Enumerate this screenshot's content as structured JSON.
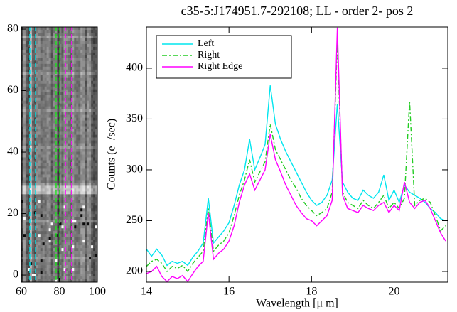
{
  "chart_data": [
    {
      "type": "image",
      "xlim": [
        60,
        100
      ],
      "ylim": [
        -2.3,
        80.7
      ],
      "xticks": [
        60,
        80,
        100
      ],
      "yticks": [
        0,
        20,
        40,
        60,
        80
      ],
      "vlines": [
        {
          "color": "#00e5ee",
          "x": [
            64.5,
            67.5
          ]
        },
        {
          "color": "#22dd22",
          "x": [
            78.3,
            80.2
          ]
        },
        {
          "color": "#ff00ff",
          "x": [
            83.2,
            86.5
          ]
        }
      ]
    },
    {
      "type": "line",
      "title": "c35-5:J174951.7-292108; LL - order 2- pos 2",
      "xlabel": "Wavelength [μ m]",
      "ylabel": "Counts (e⁻/sec)",
      "xlim": [
        14,
        21.3
      ],
      "ylim": [
        189.5,
        440.5
      ],
      "xticks": [
        14,
        16,
        18,
        20
      ],
      "yticks": [
        200,
        250,
        300,
        350,
        400
      ],
      "legend": "upper left",
      "x": [
        14,
        14.125,
        14.25,
        14.375,
        14.5,
        14.625,
        14.75,
        14.875,
        15,
        15.125,
        15.25,
        15.375,
        15.5,
        15.625,
        15.75,
        15.875,
        16,
        16.125,
        16.25,
        16.375,
        16.5,
        16.625,
        16.75,
        16.875,
        17,
        17.125,
        17.25,
        17.375,
        17.5,
        17.625,
        17.75,
        17.875,
        18,
        18.125,
        18.25,
        18.375,
        18.5,
        18.625,
        18.75,
        18.875,
        19,
        19.125,
        19.25,
        19.375,
        19.5,
        19.625,
        19.75,
        19.875,
        20,
        20.125,
        20.25,
        20.375,
        20.5,
        20.625,
        20.75,
        20.875,
        21,
        21.125,
        21.25
      ],
      "series": [
        {
          "name": "Left",
          "color": "#00e5ee",
          "dash": "solid",
          "values": [
            222,
            215,
            222,
            216,
            206,
            210,
            208,
            210,
            206,
            214,
            220,
            228,
            272,
            228,
            234,
            240,
            248,
            265,
            285,
            300,
            330,
            300,
            312,
            325,
            383,
            345,
            330,
            318,
            308,
            298,
            288,
            278,
            270,
            265,
            268,
            275,
            290,
            365,
            288,
            278,
            272,
            270,
            280,
            275,
            272,
            278,
            295,
            270,
            280,
            268,
            285,
            278,
            275,
            272,
            268,
            262,
            258,
            252,
            250
          ]
        },
        {
          "name": "Right",
          "color": "#22cc22",
          "dash": "dashdot",
          "values": [
            205,
            210,
            212,
            208,
            200,
            205,
            203,
            206,
            200,
            208,
            214,
            220,
            262,
            220,
            226,
            230,
            238,
            255,
            275,
            290,
            310,
            288,
            298,
            308,
            345,
            320,
            310,
            300,
            290,
            282,
            272,
            265,
            260,
            255,
            258,
            262,
            278,
            425,
            278,
            268,
            265,
            262,
            270,
            265,
            262,
            268,
            275,
            262,
            268,
            262,
            272,
            368,
            265,
            270,
            272,
            268,
            255,
            240,
            245
          ]
        },
        {
          "name": "Right Edge",
          "color": "#ff00ff",
          "dash": "solid",
          "values": [
            198,
            200,
            205,
            195,
            190,
            195,
            193,
            196,
            190,
            198,
            205,
            210,
            258,
            212,
            218,
            222,
            230,
            245,
            268,
            285,
            296,
            280,
            290,
            300,
            335,
            310,
            298,
            285,
            275,
            265,
            258,
            252,
            250,
            245,
            250,
            255,
            270,
            440,
            275,
            262,
            260,
            258,
            265,
            262,
            260,
            265,
            268,
            258,
            265,
            260,
            288,
            268,
            262,
            268,
            270,
            262,
            250,
            238,
            230
          ]
        }
      ]
    }
  ]
}
